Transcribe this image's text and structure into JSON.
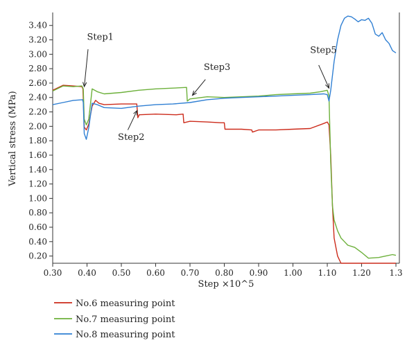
{
  "chart_data": {
    "type": "line",
    "xlabel": "Step ×10^5",
    "ylabel": "Vertical stress (MPa)",
    "xlim": [
      0.3,
      1.31
    ],
    "ylim": [
      0.1,
      3.58
    ],
    "xticks": [
      "0.30",
      "0.40",
      "0.50",
      "0.60",
      "0.70",
      "0.80",
      "0.90",
      "1.00",
      "1.10",
      "1.20",
      "1.3"
    ],
    "yticks": [
      "0.20",
      "0.40",
      "0.60",
      "0.80",
      "1.00",
      "1.20",
      "1.40",
      "1.60",
      "1.80",
      "2.00",
      "2.20",
      "2.40",
      "2.60",
      "2.80",
      "3.00",
      "3.20",
      "3.40"
    ],
    "grid": false,
    "legend_position": "bottom-left",
    "series": [
      {
        "name": "No.6 measuring point",
        "color": "#cc2a1a",
        "x": [
          0.3,
          0.33,
          0.36,
          0.385,
          0.388,
          0.392,
          0.398,
          0.405,
          0.415,
          0.425,
          0.435,
          0.45,
          0.5,
          0.545,
          0.548,
          0.552,
          0.6,
          0.66,
          0.68,
          0.682,
          0.7,
          0.75,
          0.79,
          0.8,
          0.802,
          0.85,
          0.88,
          0.882,
          0.9,
          0.95,
          1.0,
          1.05,
          1.09,
          1.1,
          1.105,
          1.11,
          1.115,
          1.12,
          1.13,
          1.14,
          1.15,
          1.16,
          1.18,
          1.2,
          1.22,
          1.25,
          1.27,
          1.29,
          1.3
        ],
        "values": [
          2.5,
          2.57,
          2.56,
          2.55,
          2.52,
          1.99,
          1.95,
          2.03,
          2.28,
          2.36,
          2.32,
          2.3,
          2.31,
          2.31,
          2.12,
          2.16,
          2.17,
          2.16,
          2.17,
          2.05,
          2.07,
          2.06,
          2.05,
          2.05,
          1.96,
          1.96,
          1.95,
          1.92,
          1.95,
          1.95,
          1.96,
          1.97,
          2.04,
          2.06,
          2.02,
          1.6,
          0.9,
          0.45,
          0.2,
          0.1,
          0.08,
          0.05,
          0.03,
          0.02,
          0.02,
          0.02,
          0.04,
          0.06,
          0.02
        ]
      },
      {
        "name": "No.7 measuring point",
        "color": "#6cb03a",
        "x": [
          0.3,
          0.33,
          0.36,
          0.385,
          0.389,
          0.392,
          0.398,
          0.405,
          0.415,
          0.43,
          0.45,
          0.5,
          0.55,
          0.6,
          0.65,
          0.69,
          0.692,
          0.7,
          0.75,
          0.8,
          0.85,
          0.9,
          0.95,
          1.0,
          1.05,
          1.08,
          1.1,
          1.105,
          1.11,
          1.115,
          1.12,
          1.13,
          1.14,
          1.15,
          1.16,
          1.18,
          1.2,
          1.22,
          1.25,
          1.27,
          1.29,
          1.3
        ],
        "values": [
          2.49,
          2.56,
          2.55,
          2.56,
          2.52,
          2.1,
          2.02,
          2.1,
          2.52,
          2.48,
          2.45,
          2.47,
          2.5,
          2.52,
          2.53,
          2.54,
          2.35,
          2.38,
          2.41,
          2.4,
          2.41,
          2.42,
          2.44,
          2.45,
          2.46,
          2.48,
          2.5,
          2.42,
          1.5,
          0.9,
          0.7,
          0.55,
          0.45,
          0.4,
          0.35,
          0.32,
          0.25,
          0.17,
          0.18,
          0.2,
          0.22,
          0.21
        ]
      },
      {
        "name": "No.8 measuring point",
        "color": "#2f7fd3",
        "x": [
          0.3,
          0.33,
          0.36,
          0.387,
          0.389,
          0.392,
          0.398,
          0.405,
          0.415,
          0.43,
          0.45,
          0.5,
          0.55,
          0.6,
          0.65,
          0.7,
          0.75,
          0.8,
          0.85,
          0.9,
          0.95,
          1.0,
          1.05,
          1.09,
          1.1,
          1.105,
          1.11,
          1.12,
          1.13,
          1.14,
          1.15,
          1.16,
          1.17,
          1.18,
          1.19,
          1.2,
          1.21,
          1.22,
          1.23,
          1.24,
          1.25,
          1.26,
          1.27,
          1.28,
          1.29,
          1.3
        ],
        "values": [
          2.3,
          2.33,
          2.36,
          2.37,
          2.33,
          1.9,
          1.82,
          1.98,
          2.32,
          2.3,
          2.26,
          2.25,
          2.28,
          2.3,
          2.31,
          2.33,
          2.37,
          2.39,
          2.4,
          2.41,
          2.42,
          2.43,
          2.44,
          2.45,
          2.44,
          2.35,
          2.5,
          2.9,
          3.2,
          3.4,
          3.5,
          3.53,
          3.52,
          3.49,
          3.45,
          3.48,
          3.47,
          3.5,
          3.43,
          3.28,
          3.25,
          3.3,
          3.2,
          3.15,
          3.05,
          3.02
        ]
      }
    ],
    "annotations": [
      {
        "text": "Step1",
        "x": 0.4,
        "y": 3.2
      },
      {
        "text": "Step2",
        "x": 0.49,
        "y": 1.81
      },
      {
        "text": "Step3",
        "x": 0.74,
        "y": 2.78
      },
      {
        "text": "Step5",
        "x": 1.05,
        "y": 3.02
      }
    ],
    "arrows": [
      {
        "from_x": 0.403,
        "from_y": 3.07,
        "to_x": 0.392,
        "to_y": 2.55
      },
      {
        "from_x": 0.519,
        "from_y": 1.95,
        "to_x": 0.546,
        "to_y": 2.22
      },
      {
        "from_x": 0.745,
        "from_y": 2.65,
        "to_x": 0.707,
        "to_y": 2.43
      },
      {
        "from_x": 1.075,
        "from_y": 2.85,
        "to_x": 1.105,
        "to_y": 2.53
      }
    ]
  }
}
